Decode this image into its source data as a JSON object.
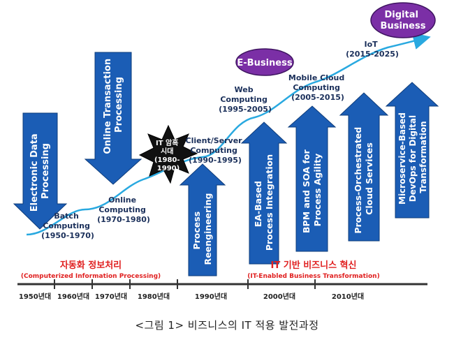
{
  "diagram": {
    "arrows": [
      {
        "id": "edp",
        "lines": [
          "Electronic Data",
          "Processing"
        ]
      },
      {
        "id": "oltp",
        "lines": [
          "Online Transaction",
          "Processing"
        ]
      },
      {
        "id": "reeng",
        "lines": [
          "Process",
          "Reengineering"
        ]
      },
      {
        "id": "eapi",
        "lines": [
          "EA-Based",
          "Process Integration"
        ]
      },
      {
        "id": "bpm",
        "lines": [
          "BPM and SOA for",
          "Process Agility"
        ]
      },
      {
        "id": "cloud",
        "lines": [
          "Process-Orchestrated",
          "Cloud Services"
        ]
      },
      {
        "id": "devops",
        "lines": [
          "Microservice-Based",
          "DevOps for Digital",
          "Transformation"
        ]
      }
    ],
    "curve_labels": [
      {
        "id": "batch",
        "lines": [
          "Batch",
          "Computing",
          "(1950-1970)"
        ]
      },
      {
        "id": "online",
        "lines": [
          "Online",
          "Computing",
          "(1970-1980)"
        ]
      },
      {
        "id": "clientserver",
        "lines": [
          "Client/Server",
          "Computing",
          "(1990-1995)"
        ]
      },
      {
        "id": "web",
        "lines": [
          "Web",
          "Computing",
          "(1995-2005)"
        ]
      },
      {
        "id": "mobile",
        "lines": [
          "Mobile Cloud",
          "Computing",
          "(2005-2015)"
        ]
      },
      {
        "id": "iot",
        "lines": [
          "IoT",
          "(2015-2025)"
        ]
      }
    ],
    "dark_age": [
      "IT 암흑",
      "시대",
      "(1980-",
      "1990)"
    ],
    "ebusiness": "E-Business",
    "digital_business": [
      "Digital",
      "Business"
    ],
    "phase_left": {
      "title": "자동화 정보처리",
      "subtitle": "(Computerized Information Processing)"
    },
    "phase_right": {
      "title": "IT 기반 비즈니스 혁신",
      "subtitle": "(IT-Enabled Business Transformation)"
    },
    "timeline_labels": [
      "1950년대",
      "1960년대",
      "1970년대",
      "1980년대",
      "1990년대",
      "2000년대",
      "2010년대"
    ]
  },
  "colors": {
    "arrow_fill": "#1b5db5",
    "arrow_stroke": "#0e3c7a",
    "curve": "#29a9e0",
    "oval": "#7b2fa6",
    "phase_red": "#e02020",
    "timeline": "#333333"
  },
  "caption": "<그림 1> 비즈니스의 IT 적용 발전과정"
}
